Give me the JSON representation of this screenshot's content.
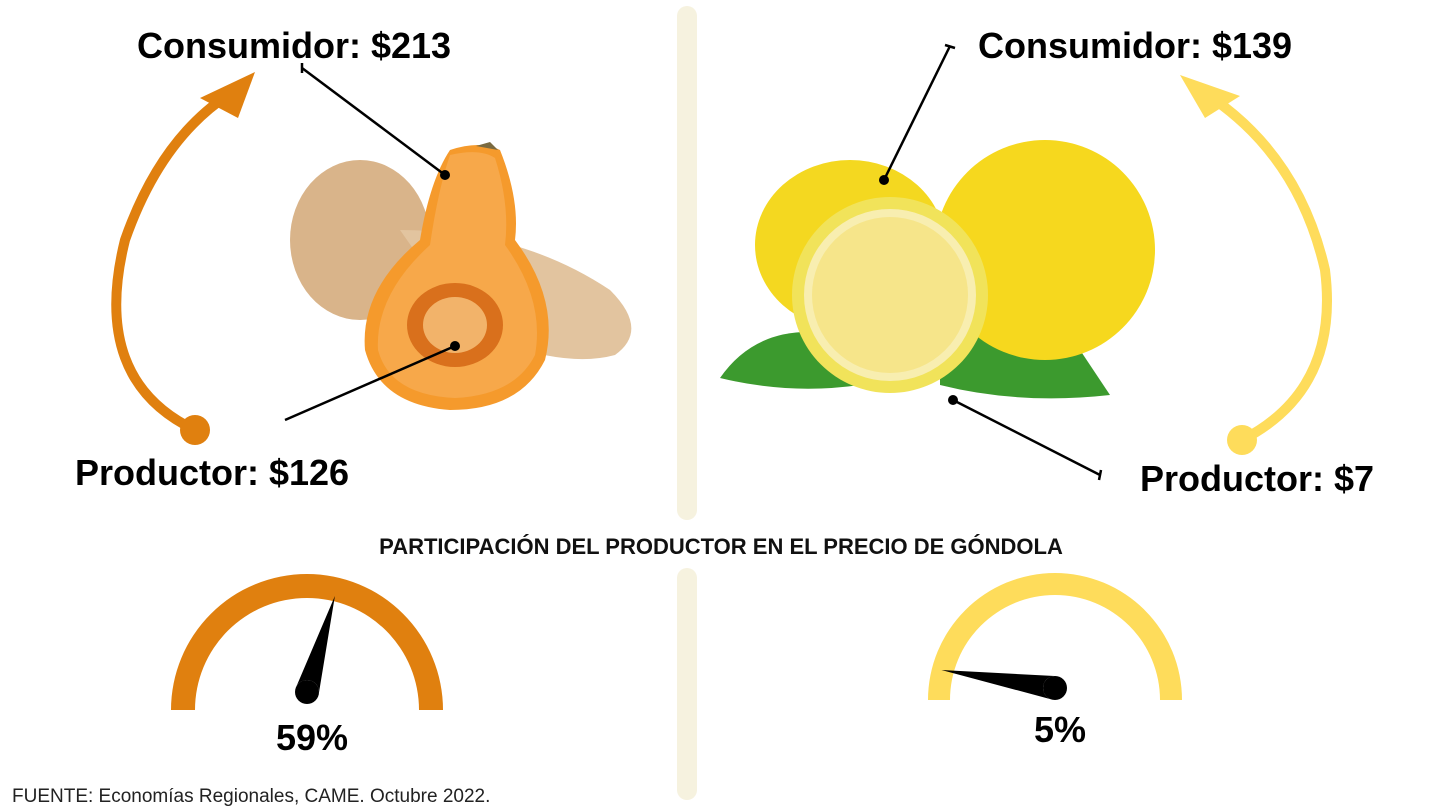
{
  "left": {
    "consumer": "Consumidor: $213",
    "producer": "Productor: $126",
    "share": 59,
    "share_label": "59%",
    "color": "#e0800f"
  },
  "right": {
    "consumer": "Consumidor: $139",
    "producer": "Productor: $7",
    "share": 5,
    "share_label": "5%",
    "color": "#fedc5b"
  },
  "subtitle": "PARTICIPACIÓN DEL PRODUCTOR EN EL PRECIO DE GÓNDOLA",
  "source": "FUENTE: Economías Regionales, CAME. Octubre 2022."
}
